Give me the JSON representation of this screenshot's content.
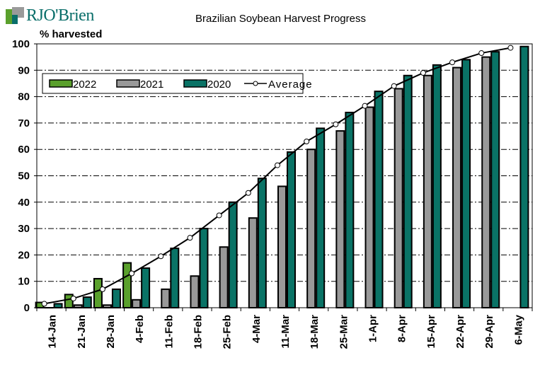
{
  "logo": {
    "text": "RJO'Brien"
  },
  "chart_data": {
    "type": "bar",
    "title": "Brazilian Soybean Harvest Progress",
    "xlabel": "",
    "ylabel": "% harvested",
    "ylim": [
      0,
      100
    ],
    "yticks": [
      0,
      10,
      20,
      30,
      40,
      50,
      60,
      70,
      80,
      90,
      100
    ],
    "grid": true,
    "legend_position": "top-left",
    "categories": [
      "14-Jan",
      "21-Jan",
      "28-Jan",
      "4-Feb",
      "11-Feb",
      "18-Feb",
      "25-Feb",
      "4-Mar",
      "11-Mar",
      "18-Mar",
      "25-Mar",
      "1-Apr",
      "8-Apr",
      "15-Apr",
      "22-Apr",
      "29-Apr",
      "6-May"
    ],
    "series": [
      {
        "name": "2022",
        "type": "bar",
        "color": "#5aa02c",
        "values": [
          2,
          5,
          11,
          17,
          null,
          null,
          null,
          null,
          null,
          null,
          null,
          null,
          null,
          null,
          null,
          null,
          null
        ]
      },
      {
        "name": "2021",
        "type": "bar",
        "color": "#999999",
        "values": [
          0,
          1,
          1,
          3,
          7,
          12,
          23,
          34,
          46,
          60,
          67,
          76,
          83,
          88,
          91,
          95,
          null
        ]
      },
      {
        "name": "2020",
        "type": "bar",
        "color": "#0a7366",
        "values": [
          1.5,
          4,
          7,
          15,
          22.5,
          30,
          40,
          49,
          59,
          68,
          74,
          82,
          88,
          92,
          94,
          97,
          99
        ]
      },
      {
        "name": "Average",
        "type": "line",
        "color": "#000000",
        "values": [
          1.5,
          3.5,
          7,
          13,
          19.5,
          26.5,
          35,
          43.5,
          54,
          63,
          69.5,
          76.5,
          84,
          89,
          93,
          96.5,
          98.5
        ]
      }
    ]
  }
}
